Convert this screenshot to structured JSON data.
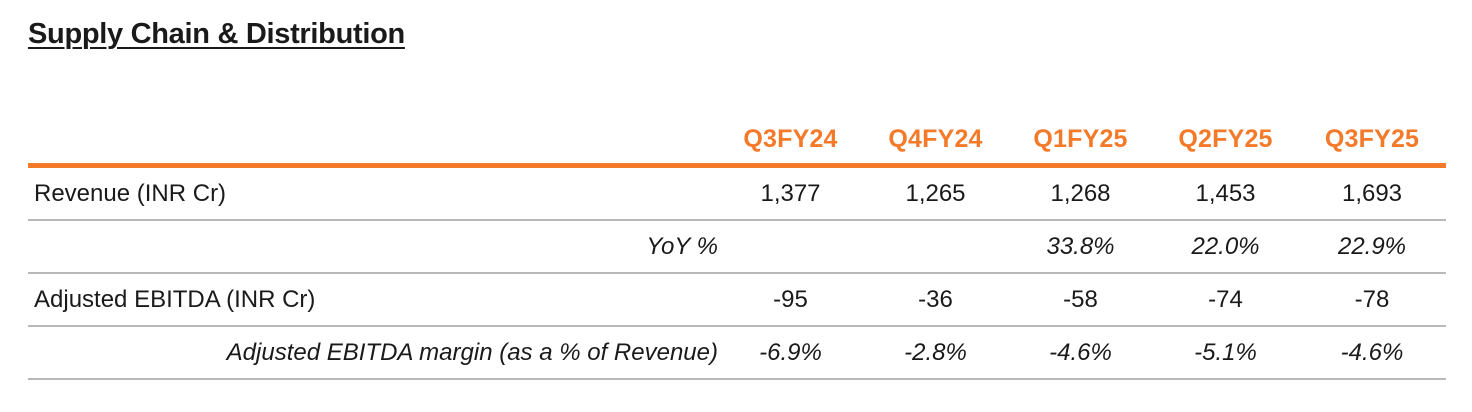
{
  "title": "Supply Chain & Distribution",
  "accent_color": "#f47a2a",
  "table": {
    "columns": [
      "Q3FY24",
      "Q4FY24",
      "Q1FY25",
      "Q2FY25",
      "Q3FY25"
    ],
    "rows": [
      {
        "label": "Revenue (INR Cr)",
        "values": [
          "1,377",
          "1,265",
          "1,268",
          "1,453",
          "1,693"
        ]
      },
      {
        "label": "YoY %",
        "values": [
          "",
          "",
          "33.8%",
          "22.0%",
          "22.9%"
        ]
      },
      {
        "label": "Adjusted EBITDA (INR Cr)",
        "values": [
          "-95",
          "-36",
          "-58",
          "-74",
          "-78"
        ]
      },
      {
        "label": "Adjusted EBITDA margin (as a % of Revenue)",
        "values": [
          "-6.9%",
          "-2.8%",
          "-4.6%",
          "-5.1%",
          "-4.6%"
        ]
      }
    ]
  }
}
